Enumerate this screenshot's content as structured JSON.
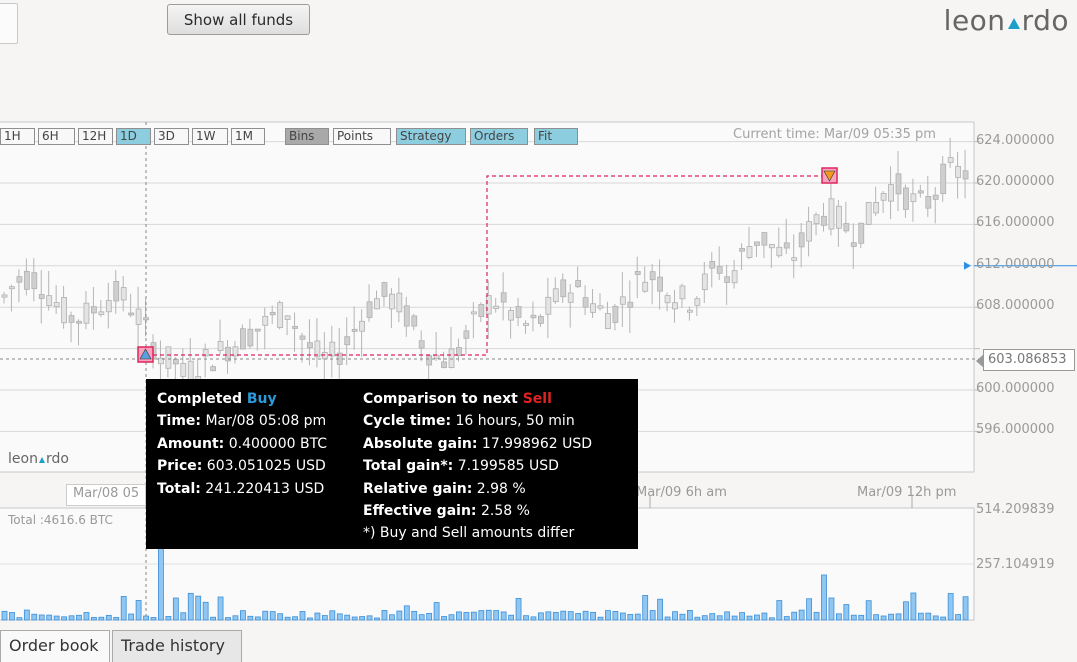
{
  "header": {
    "show_all_funds": "Show all funds",
    "logo": "leon▲rdo"
  },
  "toolbar": {
    "buttons": [
      "1H",
      "6H",
      "12H",
      "1D",
      "3D",
      "1W",
      "1M",
      "Bins",
      "Points",
      "Strategy",
      "Orders",
      "Fit"
    ],
    "active": [
      "1D",
      "Strategy",
      "Orders",
      "Fit"
    ],
    "dark": [
      "Bins"
    ]
  },
  "current_time": "Current time: Mar/09 05:35 pm",
  "price_axis": [
    "624.000000",
    "620.000000",
    "616.000000",
    "612.000000",
    "608.000000",
    "600.000000",
    "596.000000"
  ],
  "current_price": "603.086853",
  "x_axis": {
    "hover_date": "Mar/08 05",
    "label_6h": "Mar/09 6h am",
    "label_12h": "Mar/09 12h pm"
  },
  "watermark": "leon▲rdo",
  "volume": {
    "total": "Total :4616.6 BTC",
    "axis": [
      "514.209839",
      "257.104919"
    ]
  },
  "tooltip": {
    "left_title_prefix": "Completed ",
    "left_title_kind": "Buy",
    "left": [
      {
        "k": "Time:",
        "v": " Mar/08 05:08 pm"
      },
      {
        "k": "Amount:",
        "v": " 0.400000 BTC"
      },
      {
        "k": "Price:",
        "v": " 603.051025 USD"
      },
      {
        "k": "Total:",
        "v": " 241.220413 USD"
      }
    ],
    "right_title_prefix": "Comparison to next ",
    "right_title_kind": "Sell",
    "right": [
      {
        "k": "Cycle time:",
        "v": " 16 hours, 50 min"
      },
      {
        "k": "Absolute gain:",
        "v": " 17.998962 USD"
      },
      {
        "k": "Total gain*:",
        "v": " 7.199585 USD"
      },
      {
        "k": "Relative gain:",
        "v": " 2.98 %"
      },
      {
        "k": "Effective gain:",
        "v": " 2.58 %"
      }
    ],
    "footnote": "*) Buy and Sell amounts differ"
  },
  "tabs": [
    "Order book",
    "Trade history"
  ],
  "colors": {
    "accent": "#8ccde0",
    "buy": "#2b9ad8",
    "sell": "#e02222",
    "volume": "#4aa3e8",
    "order_line": "#e0245e"
  },
  "chart_data": {
    "type": "candlestick",
    "price_ticks": [
      596,
      600,
      608,
      612,
      616,
      620,
      624
    ],
    "volume_ticks": [
      257.104919,
      514.209839
    ],
    "buy_order": {
      "time": "Mar/08 05:08 pm",
      "price": 603.051025
    },
    "current_price": 603.086853
  }
}
